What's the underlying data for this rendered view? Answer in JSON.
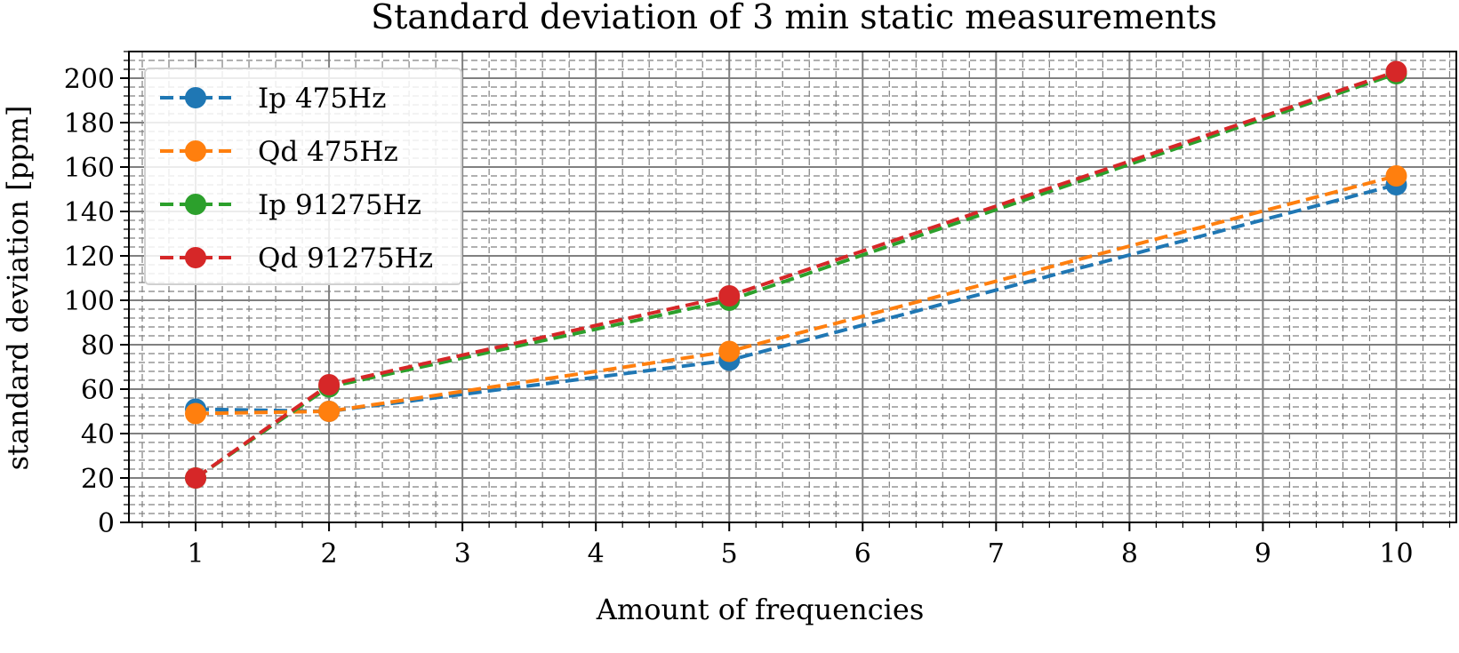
{
  "chart_data": {
    "type": "line",
    "title": "Standard deviation of 3 min static measurements",
    "xlabel": "Amount of frequencies",
    "ylabel": "standard deviation [ppm]",
    "x": [
      1,
      2,
      5,
      10
    ],
    "xlim": [
      0.5,
      10.45
    ],
    "ylim": [
      0,
      212
    ],
    "xticks": [
      1,
      2,
      3,
      4,
      5,
      6,
      7,
      8,
      9,
      10
    ],
    "yticks": [
      0,
      20,
      40,
      60,
      80,
      100,
      120,
      140,
      160,
      180,
      200
    ],
    "grid": true,
    "minor_grid": true,
    "legend_position": "top-left",
    "series": [
      {
        "name": "Ip 475Hz",
        "color": "#1f77b4",
        "values": [
          51,
          50,
          73,
          152
        ]
      },
      {
        "name": "Qd 475Hz",
        "color": "#ff7f0e",
        "values": [
          49,
          50,
          77,
          156
        ]
      },
      {
        "name": "Ip 91275Hz",
        "color": "#2ca02c",
        "values": [
          20,
          61,
          100,
          202
        ]
      },
      {
        "name": "Qd 91275Hz",
        "color": "#d62728",
        "values": [
          20,
          62,
          102,
          203
        ]
      }
    ]
  }
}
